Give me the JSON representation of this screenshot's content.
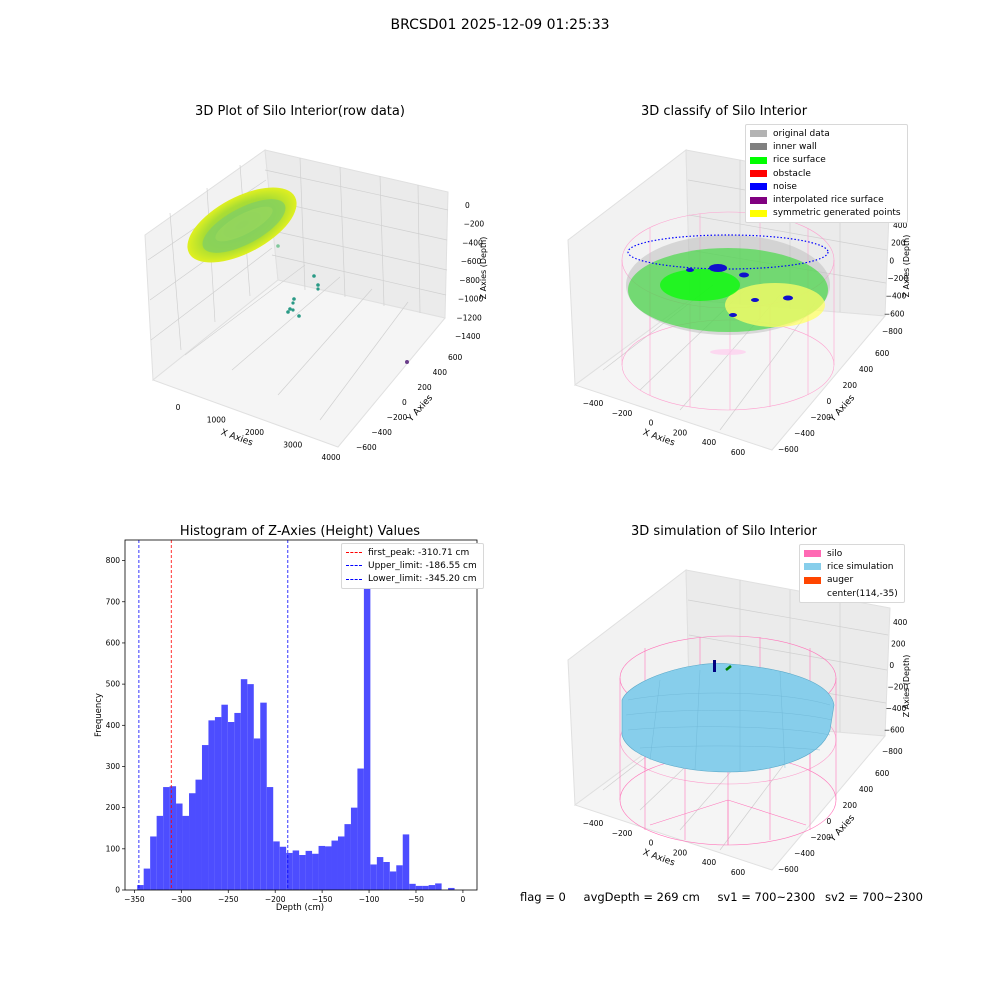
{
  "suptitle": "BRCSD01 2025-12-09 01:25:33",
  "panels": {
    "raw": {
      "title": "3D Plot of Silo Interior(row data)",
      "xlabel": "X Axies",
      "ylabel": "Y Axies",
      "zlabel": "Z Axies (Depth)",
      "xticks": [
        "0",
        "1000",
        "2000",
        "3000",
        "4000"
      ],
      "yticks": [
        "600",
        "400",
        "200",
        "0",
        "−200",
        "−400",
        "−600"
      ],
      "zticks": [
        "0",
        "−200",
        "−400",
        "−600",
        "−800",
        "−1000",
        "−1200",
        "−1400"
      ]
    },
    "classify": {
      "title": "3D classify of Silo Interior",
      "xlabel": "X Axies",
      "ylabel": "Y Axies",
      "zlabel": "Z Axies (Depth)",
      "xticks": [
        "−400",
        "−200",
        "0",
        "200",
        "400",
        "600"
      ],
      "yticks": [
        "600",
        "400",
        "200",
        "0",
        "−200",
        "−400",
        "−600"
      ],
      "zticks": [
        "400",
        "200",
        "0",
        "−200",
        "−400",
        "−600",
        "−800"
      ],
      "legend": [
        {
          "label": "original data",
          "color": "#b3b3b3"
        },
        {
          "label": "inner wall",
          "color": "#808080"
        },
        {
          "label": "rice surface",
          "color": "#00ff00"
        },
        {
          "label": "obstacle",
          "color": "#ff0000"
        },
        {
          "label": "noise",
          "color": "#0000ff"
        },
        {
          "label": "interpolated rice surface",
          "color": "#800080"
        },
        {
          "label": "symmetric generated points",
          "color": "#ffff00"
        }
      ]
    },
    "simulation": {
      "title": "3D simulation of Silo Interior",
      "xlabel": "X Axies",
      "ylabel": "Y Axies",
      "zlabel": "Z Axies (Depth)",
      "xticks": [
        "−400",
        "−200",
        "0",
        "200",
        "400",
        "600"
      ],
      "yticks": [
        "600",
        "400",
        "200",
        "0",
        "−200",
        "−400",
        "−600"
      ],
      "zticks": [
        "400",
        "200",
        "0",
        "−200",
        "−400",
        "−600",
        "−800"
      ],
      "legend": [
        {
          "label": "silo",
          "color": "#ff69b4"
        },
        {
          "label": "rice simulation",
          "color": "#87ceeb"
        },
        {
          "label": "auger",
          "color": "#ff4500"
        },
        {
          "label": "center(114,-35)",
          "color": ""
        }
      ]
    }
  },
  "chart_data": {
    "type": "bar",
    "title": "Histogram of Z-Axies (Height) Values",
    "xlabel": "Depth (cm)",
    "ylabel": "Frequency",
    "xlim": [
      -360,
      15
    ],
    "ylim": [
      0,
      850
    ],
    "xticks": [
      -350,
      -300,
      -250,
      -200,
      -150,
      -100,
      -50,
      0
    ],
    "yticks": [
      0,
      100,
      200,
      300,
      400,
      500,
      600,
      700,
      800
    ],
    "bin_start": -347,
    "bin_width": 6.9,
    "color": "#4d4dff",
    "values": [
      12,
      52,
      130,
      180,
      250,
      252,
      210,
      180,
      235,
      268,
      352,
      412,
      420,
      450,
      408,
      430,
      512,
      500,
      368,
      455,
      250,
      118,
      105,
      90,
      96,
      85,
      95,
      88,
      107,
      106,
      120,
      130,
      160,
      200,
      295,
      800,
      62,
      80,
      68,
      45,
      60,
      135,
      15,
      10,
      10,
      12,
      16,
      0,
      5
    ],
    "vlines": [
      {
        "name": "first_peak",
        "label": "first_peak: -310.71 cm",
        "x": -310.71,
        "color": "#ff0000"
      },
      {
        "name": "upper-limit",
        "label": "Upper_limit: -186.55 cm",
        "x": -186.55,
        "color": "#0000ff"
      },
      {
        "name": "lower-limit",
        "label": "Lower_limit: -345.20 cm",
        "x": -345.2,
        "color": "#0000ff"
      }
    ],
    "legend_position": "upper-right"
  },
  "footer": {
    "flag": "flag = 0",
    "avgDepth": "avgDepth = 269 cm",
    "sv1": "sv1 = 700~2300",
    "sv2": "sv2 = 700~2300"
  }
}
